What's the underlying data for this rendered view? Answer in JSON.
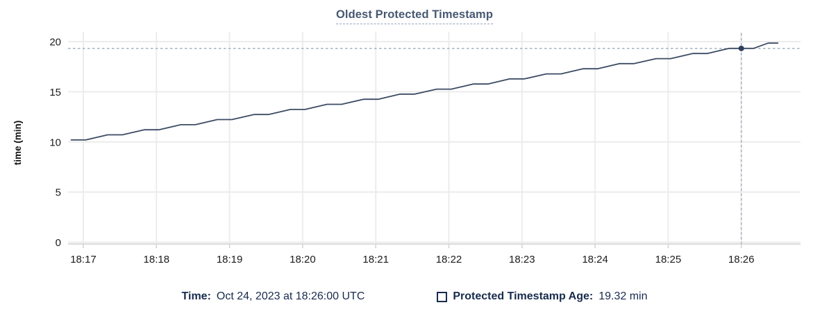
{
  "title": "Oldest Protected Timestamp",
  "colors": {
    "title_text": "#475872",
    "title_underline": "#93a5bd",
    "series_line": "#3b4a64",
    "highlight_dot": "#2f3f5c",
    "grid_line": "#ececec",
    "axis_line": "#dbdbdb",
    "axis_tick": "#d2d2d2",
    "crosshair": "#a2b1bf",
    "tick_label": "#1b1b1b",
    "legend_text": "#172b4d"
  },
  "chart_data": {
    "type": "line",
    "title": "Oldest Protected Timestamp",
    "xlabel": "",
    "ylabel": "time (min)",
    "ylim": [
      0,
      20
    ],
    "y_ticks": [
      0,
      5,
      10,
      15,
      20
    ],
    "x_ticks": [
      "18:17",
      "18:18",
      "18:19",
      "18:20",
      "18:21",
      "18:22",
      "18:23",
      "18:24",
      "18:25",
      "18:26"
    ],
    "x_range": [
      "18:16:50",
      "18:26:30"
    ],
    "grid": true,
    "legend_position": "bottom",
    "series": [
      {
        "name": "Protected Timestamp Age",
        "unit": "min",
        "points": [
          [
            "18:16:50",
            10.2
          ],
          [
            "18:17:02",
            10.2
          ],
          [
            "18:17:20",
            10.71
          ],
          [
            "18:17:32",
            10.71
          ],
          [
            "18:17:50",
            11.21
          ],
          [
            "18:18:02",
            11.21
          ],
          [
            "18:18:20",
            11.72
          ],
          [
            "18:18:32",
            11.72
          ],
          [
            "18:18:50",
            12.23
          ],
          [
            "18:19:02",
            12.23
          ],
          [
            "18:19:20",
            12.73
          ],
          [
            "18:19:32",
            12.73
          ],
          [
            "18:19:50",
            13.24
          ],
          [
            "18:20:02",
            13.24
          ],
          [
            "18:20:20",
            13.75
          ],
          [
            "18:20:32",
            13.75
          ],
          [
            "18:20:50",
            14.25
          ],
          [
            "18:21:02",
            14.25
          ],
          [
            "18:21:20",
            14.76
          ],
          [
            "18:21:32",
            14.76
          ],
          [
            "18:21:50",
            15.26
          ],
          [
            "18:22:02",
            15.26
          ],
          [
            "18:22:20",
            15.77
          ],
          [
            "18:22:32",
            15.77
          ],
          [
            "18:22:50",
            16.28
          ],
          [
            "18:23:02",
            16.28
          ],
          [
            "18:23:20",
            16.78
          ],
          [
            "18:23:32",
            16.78
          ],
          [
            "18:23:50",
            17.29
          ],
          [
            "18:24:02",
            17.29
          ],
          [
            "18:24:20",
            17.8
          ],
          [
            "18:24:32",
            17.8
          ],
          [
            "18:24:50",
            18.3
          ],
          [
            "18:25:02",
            18.3
          ],
          [
            "18:25:20",
            18.81
          ],
          [
            "18:25:32",
            18.81
          ],
          [
            "18:25:50",
            19.32
          ],
          [
            "18:26:10",
            19.32
          ],
          [
            "18:26:22",
            19.85
          ],
          [
            "18:26:30",
            19.85
          ]
        ]
      }
    ],
    "highlight": {
      "time": "18:26:00",
      "value": 19.32
    }
  },
  "legend": {
    "time_label": "Time:",
    "time_value": "Oct 24, 2023 at 18:26:00 UTC",
    "series_label": "Protected Timestamp Age:",
    "series_value": "19.32 min"
  }
}
